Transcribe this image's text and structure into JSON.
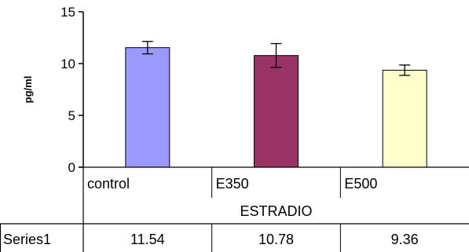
{
  "chart_data": {
    "type": "bar",
    "categories": [
      "control",
      "E350",
      "E500"
    ],
    "group_label": "ESTRADIO",
    "ylabel": "pg/ml",
    "ylim": [
      0,
      15
    ],
    "yticks": [
      0,
      5,
      10,
      15
    ],
    "series": [
      {
        "name": "Series1",
        "values": [
          11.54,
          10.78,
          9.36
        ],
        "value_labels": [
          "11.54",
          "10.78",
          "9.36"
        ],
        "error": [
          0.6,
          1.15,
          0.5
        ],
        "colors": [
          "#9999ff",
          "#993366",
          "#ffffcc"
        ]
      }
    ],
    "legend": "none",
    "grid": false,
    "data_table": true
  }
}
